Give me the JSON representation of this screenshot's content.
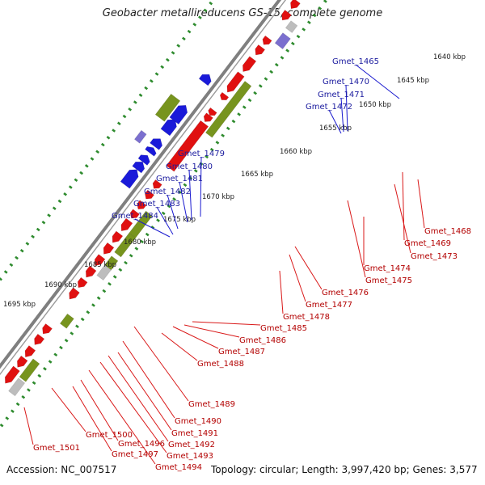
{
  "title": "Geobacter metallireducens GS-15, complete genome",
  "footer": {
    "accession": "Accession: NC_007517",
    "summary": "Topology: circular; Length: 3,997,420 bp; Genes: 3,577"
  },
  "colors": {
    "backbone": "#7f7f7f",
    "forward_gene": "#1a1ad9",
    "reverse_gene": "#e01010",
    "rna_gene": "#77941e",
    "pseudo_gene": "#bdbdbd",
    "misc_feature": "#7b6fcf",
    "top_label": "#1a1a9e",
    "bottom_label": "#b30000",
    "tick": "#2e8b2e"
  },
  "kbp_markers": [
    "1640 kbp",
    "1645 kbp",
    "1650 kbp",
    "1655 kbp",
    "1660 kbp",
    "1665 kbp",
    "1670 kbp",
    "1675 kbp",
    "1680 kbp",
    "1685 kbp",
    "1690 kbp",
    "1695 kbp"
  ],
  "top_gene_labels": [
    "Gmet_1465",
    "Gmet_1470",
    "Gmet_1471",
    "Gmet_1472",
    "Gmet_1479",
    "Gmet_1480",
    "Gmet_1481",
    "Gmet_1482",
    "Gmet_1483",
    "Gmet_1484"
  ],
  "bottom_gene_labels": [
    "Gmet_1468",
    "Gmet_1469",
    "Gmet_1473",
    "Gmet_1474",
    "Gmet_1475",
    "Gmet_1476",
    "Gmet_1477",
    "Gmet_1478",
    "Gmet_1485",
    "Gmet_1486",
    "Gmet_1487",
    "Gmet_1488",
    "Gmet_1489",
    "Gmet_1490",
    "Gmet_1491",
    "Gmet_1492",
    "Gmet_1493",
    "Gmet_1494",
    "Gmet_1496",
    "Gmet_1497",
    "Gmet_1500",
    "Gmet_1501"
  ]
}
